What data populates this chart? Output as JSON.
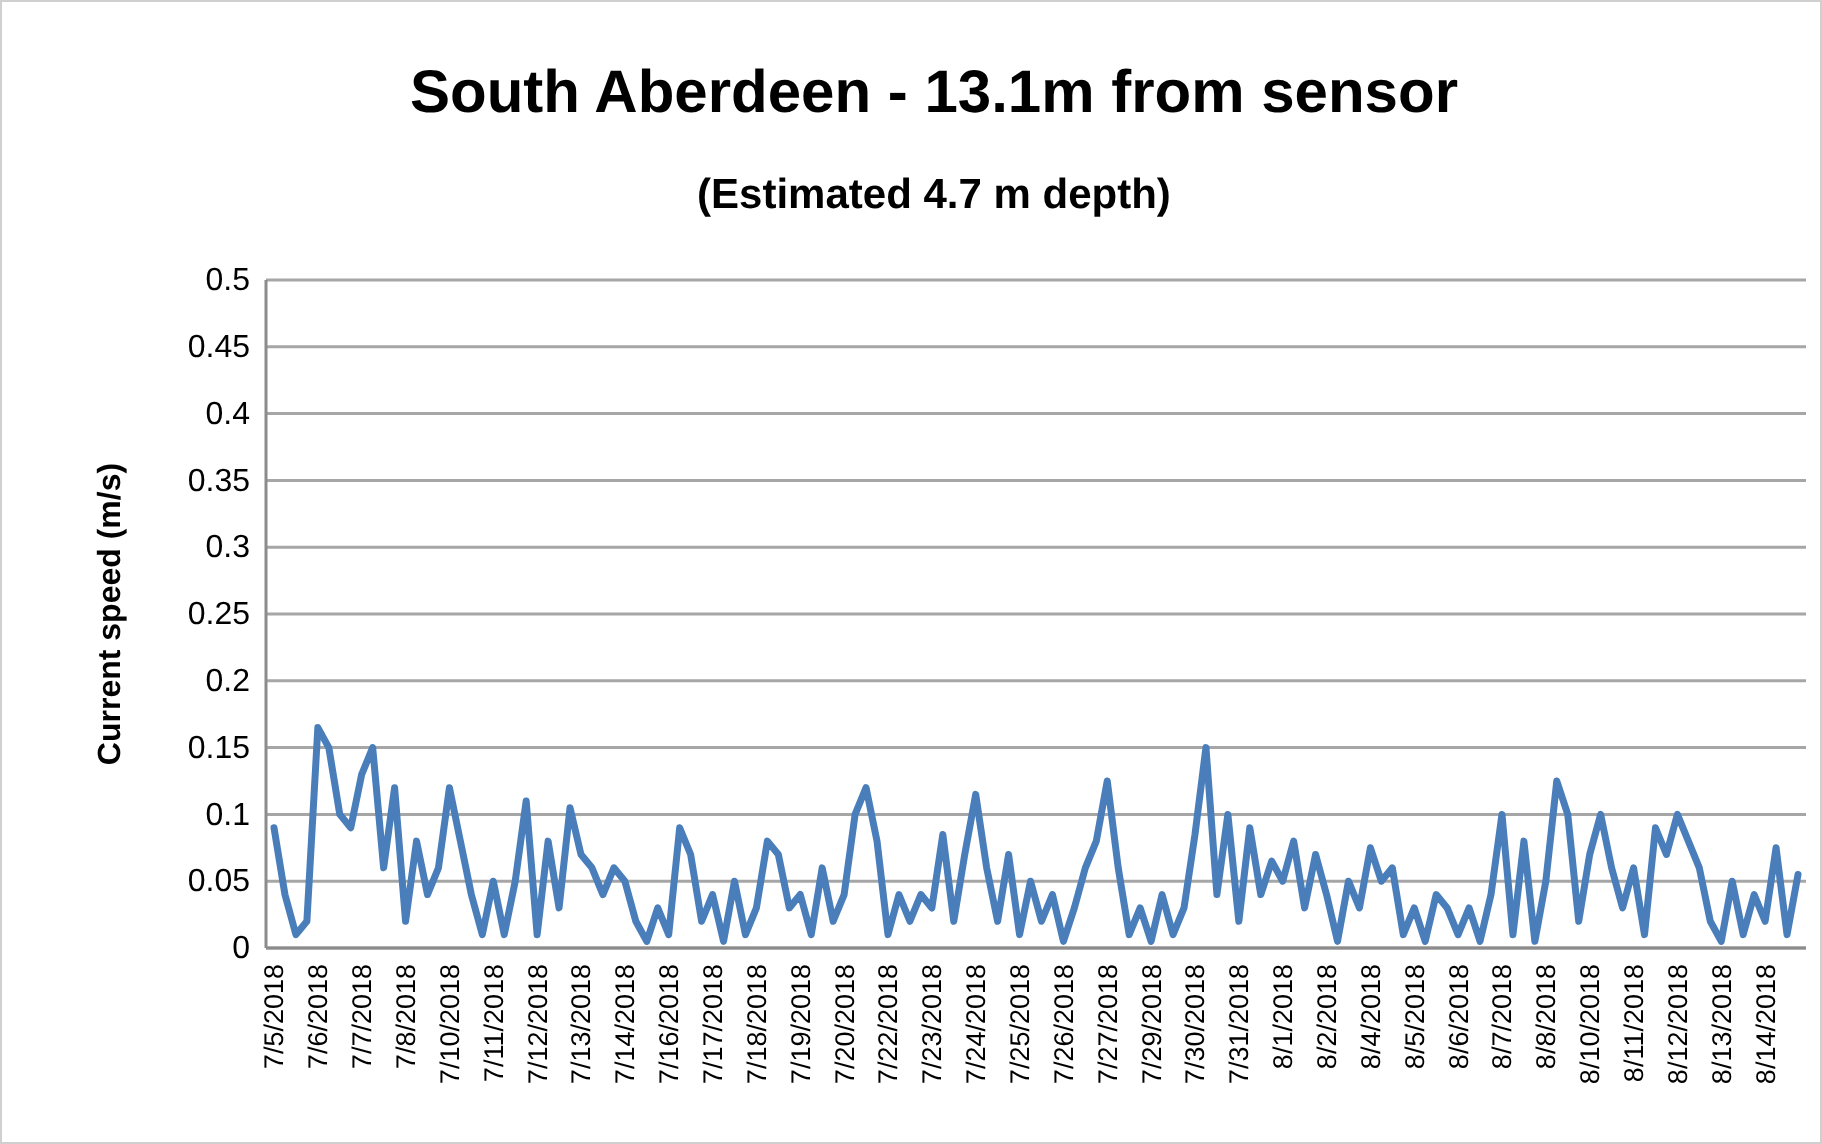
{
  "chart_data": {
    "type": "line",
    "title": "South Aberdeen - 13.1m from sensor",
    "subtitle": "(Estimated 4.7 m depth)",
    "ylabel": "Current speed (m/s)",
    "categories": [
      "7/5/2018",
      null,
      null,
      null,
      "7/6/2018",
      null,
      null,
      null,
      "7/7/2018",
      null,
      null,
      null,
      "7/8/2018",
      null,
      null,
      null,
      "7/10/2018",
      null,
      null,
      null,
      "7/11/2018",
      null,
      null,
      null,
      "7/12/2018",
      null,
      null,
      null,
      "7/13/2018",
      null,
      null,
      null,
      "7/14/2018",
      null,
      null,
      null,
      "7/16/2018",
      null,
      null,
      null,
      "7/17/2018",
      null,
      null,
      null,
      "7/18/2018",
      null,
      null,
      null,
      "7/19/2018",
      null,
      null,
      null,
      "7/20/2018",
      null,
      null,
      null,
      "7/22/2018",
      null,
      null,
      null,
      "7/23/2018",
      null,
      null,
      null,
      "7/24/2018",
      null,
      null,
      null,
      "7/25/2018",
      null,
      null,
      null,
      "7/26/2018",
      null,
      null,
      null,
      "7/27/2018",
      null,
      null,
      null,
      "7/29/2018",
      null,
      null,
      null,
      "7/30/2018",
      null,
      null,
      null,
      "7/31/2018",
      null,
      null,
      null,
      "8/1/2018",
      null,
      null,
      null,
      "8/2/2018",
      null,
      null,
      null,
      "8/4/2018",
      null,
      null,
      null,
      "8/5/2018",
      null,
      null,
      null,
      "8/6/2018",
      null,
      null,
      null,
      "8/7/2018",
      null,
      null,
      null,
      "8/8/2018",
      null,
      null,
      null,
      "8/10/2018",
      null,
      null,
      null,
      "8/11/2018",
      null,
      null,
      null,
      "8/12/2018",
      null,
      null,
      null,
      "8/13/2018",
      null,
      null,
      null,
      "8/14/2018",
      null,
      null,
      null
    ],
    "series": [
      {
        "color": "#4a7ebb",
        "values": [
          0.09,
          0.04,
          0.01,
          0.02,
          0.165,
          0.15,
          0.1,
          0.09,
          0.13,
          0.15,
          0.06,
          0.12,
          0.02,
          0.08,
          0.04,
          0.06,
          0.12,
          0.08,
          0.04,
          0.01,
          0.05,
          0.01,
          0.05,
          0.11,
          0.01,
          0.08,
          0.03,
          0.105,
          0.07,
          0.06,
          0.04,
          0.06,
          0.05,
          0.02,
          0.005,
          0.03,
          0.01,
          0.09,
          0.07,
          0.02,
          0.04,
          0.005,
          0.05,
          0.01,
          0.03,
          0.08,
          0.07,
          0.03,
          0.04,
          0.01,
          0.06,
          0.02,
          0.04,
          0.1,
          0.12,
          0.08,
          0.01,
          0.04,
          0.02,
          0.04,
          0.03,
          0.085,
          0.02,
          0.07,
          0.115,
          0.06,
          0.02,
          0.07,
          0.01,
          0.05,
          0.02,
          0.04,
          0.005,
          0.03,
          0.06,
          0.08,
          0.125,
          0.06,
          0.01,
          0.03,
          0.005,
          0.04,
          0.01,
          0.03,
          0.085,
          0.15,
          0.04,
          0.1,
          0.02,
          0.09,
          0.04,
          0.065,
          0.05,
          0.08,
          0.03,
          0.07,
          0.04,
          0.005,
          0.05,
          0.03,
          0.075,
          0.05,
          0.06,
          0.01,
          0.03,
          0.005,
          0.04,
          0.03,
          0.01,
          0.03,
          0.005,
          0.04,
          0.1,
          0.01,
          0.08,
          0.005,
          0.05,
          0.125,
          0.1,
          0.02,
          0.07,
          0.1,
          0.06,
          0.03,
          0.06,
          0.01,
          0.09,
          0.07,
          0.1,
          0.08,
          0.06,
          0.02,
          0.005,
          0.05,
          0.01,
          0.04,
          0.02,
          0.075,
          0.01,
          0.055
        ]
      }
    ],
    "ylim": [
      0,
      0.5
    ],
    "yticks": [
      0,
      0.05,
      0.1,
      0.15,
      0.2,
      0.25,
      0.3,
      0.35,
      0.4,
      0.45,
      0.5
    ],
    "grid": "y",
    "marker": "none",
    "line_style": "solid"
  }
}
